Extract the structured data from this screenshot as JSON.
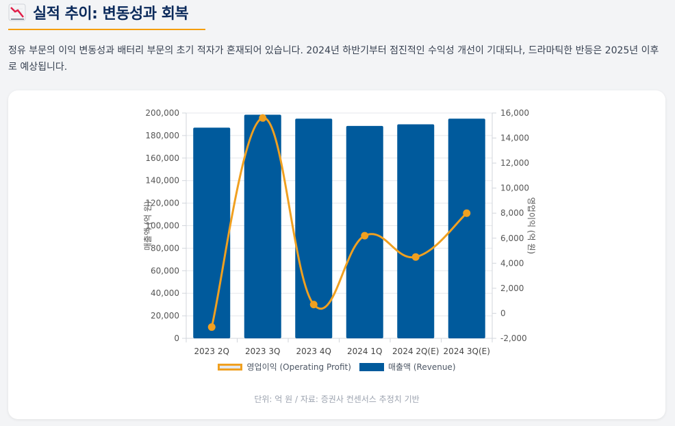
{
  "header": {
    "title": "실적 추이: 변동성과 회복",
    "icon": "chart-decreasing-icon"
  },
  "description": "정유 부문의 이익 변동성과 배터리 부문의 초기 적자가 혼재되어 있습니다. 2024년 하반기부터 점진적인 수익성 개선이 기대되나, 드라마틱한 반등은 2025년 이후로 예상됩니다.",
  "chart_data": {
    "type": "bar",
    "categories": [
      "2023 2Q",
      "2023 3Q",
      "2023 4Q",
      "2024 1Q",
      "2024 2Q(E)",
      "2024 3Q(E)"
    ],
    "series": [
      {
        "name": "매출액 (Revenue)",
        "type": "bar",
        "axis": "left",
        "color": "#005a9c",
        "values": [
          187000,
          198500,
          195000,
          188500,
          190000,
          195000
        ]
      },
      {
        "name": "영업이익 (Operating Profit)",
        "type": "line",
        "axis": "right",
        "color": "#f0a020",
        "values": [
          -1100,
          15600,
          700,
          6200,
          4500,
          8000
        ]
      }
    ],
    "ylabel": "매출액 (억 원)",
    "y2label": "영업이익 (억 원)",
    "ylim": [
      0,
      200000
    ],
    "y2lim": [
      -2000,
      16000
    ],
    "yticks": [
      "0",
      "20,000",
      "40,000",
      "60,000",
      "80,000",
      "100,000",
      "120,000",
      "140,000",
      "160,000",
      "180,000",
      "200,000"
    ],
    "y2ticks": [
      "-2,000",
      "0",
      "2,000",
      "4,000",
      "6,000",
      "8,000",
      "10,000",
      "12,000",
      "14,000",
      "16,000"
    ]
  },
  "legend": {
    "line_label": "영업이익 (Operating Profit)",
    "bar_label": "매출액 (Revenue)"
  },
  "source": "단위: 억 원 / 자료: 증권사 컨센서스 추정치 기반"
}
